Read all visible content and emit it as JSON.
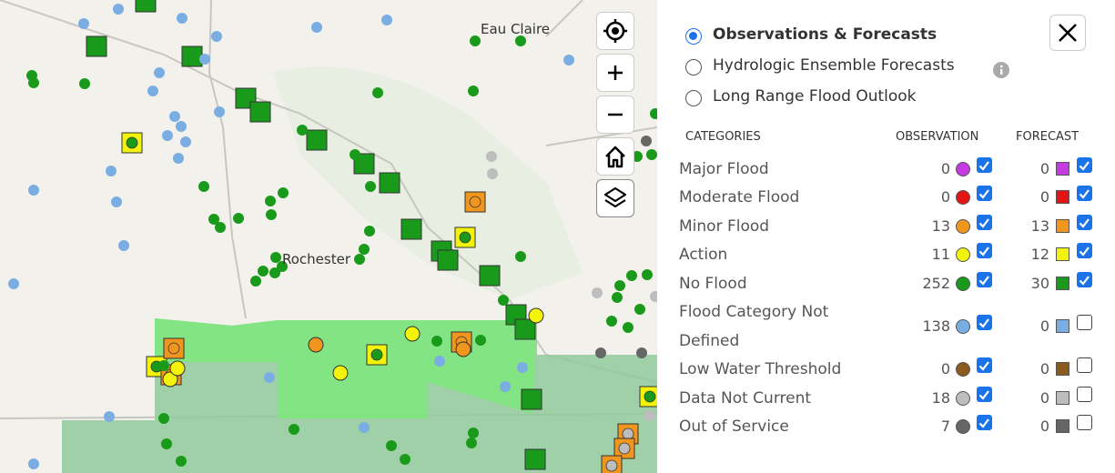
{
  "map": {
    "labels": [
      "Eau Claire",
      "Rochester"
    ]
  },
  "panel": {
    "views": [
      {
        "label": "Observations & Forecasts",
        "selected": true
      },
      {
        "label": "Hydrologic Ensemble Forecasts",
        "selected": false
      },
      {
        "label": "Long Range Flood Outlook",
        "selected": false
      }
    ],
    "headers": {
      "categories": "CATEGORIES",
      "observation": "OBSERVATION",
      "forecast": "FORECAST"
    },
    "rows": [
      {
        "label": "Major Flood",
        "observation": 0,
        "forecast": 0,
        "color": "#c43ce0",
        "fc_color": "#c43ce0",
        "obs_checked": true,
        "fc_checked": true
      },
      {
        "label": "Moderate Flood",
        "observation": 0,
        "forecast": 0,
        "color": "#e51414",
        "fc_color": "#e51414",
        "obs_checked": true,
        "fc_checked": true
      },
      {
        "label": "Minor Flood",
        "observation": 13,
        "forecast": 13,
        "color": "#f0961e",
        "fc_color": "#f0961e",
        "obs_checked": true,
        "fc_checked": true
      },
      {
        "label": "Action",
        "observation": 11,
        "forecast": 12,
        "color": "#f2f20a",
        "fc_color": "#f2f20a",
        "obs_checked": true,
        "fc_checked": true
      },
      {
        "label": "No Flood",
        "observation": 252,
        "forecast": 30,
        "color": "#1a9a1a",
        "fc_color": "#1a9a1a",
        "obs_checked": true,
        "fc_checked": true
      },
      {
        "label": "Flood Category Not Defined",
        "observation": 138,
        "forecast": 0,
        "color": "#7aaee3",
        "fc_color": "#7aaee3",
        "obs_checked": true,
        "fc_checked": false
      },
      {
        "label": "Low Water Threshold",
        "observation": 0,
        "forecast": 0,
        "color": "#8b5a1e",
        "fc_color": "#8b5a1e",
        "obs_checked": true,
        "fc_checked": false
      },
      {
        "label": "Data Not Current",
        "observation": 18,
        "forecast": 0,
        "color": "#bdbdbd",
        "fc_color": "#bdbdbd",
        "obs_checked": true,
        "fc_checked": false
      },
      {
        "label": "Out of Service",
        "observation": 7,
        "forecast": 0,
        "color": "#666666",
        "fc_color": "#666666",
        "obs_checked": true,
        "fc_checked": false
      }
    ]
  }
}
